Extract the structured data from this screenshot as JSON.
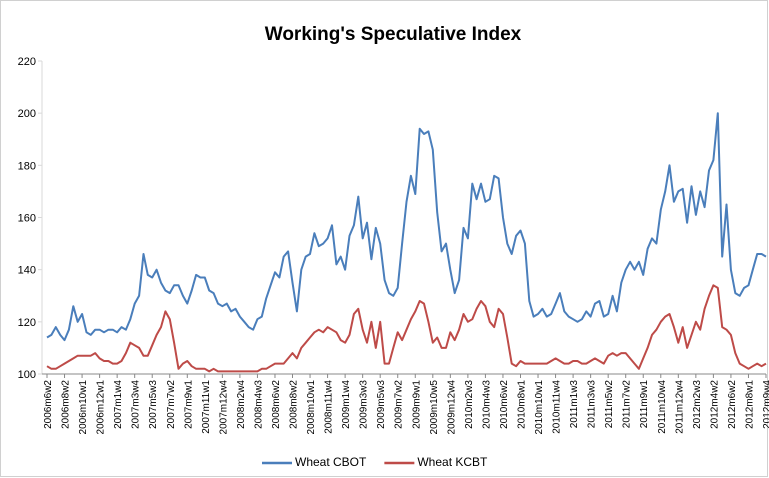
{
  "chart_data": {
    "type": "line",
    "title": "Working's Speculative Index",
    "categories": [
      "2006m6w2",
      null,
      null,
      null,
      "2006m8w2",
      null,
      null,
      null,
      "2006m10w1",
      null,
      null,
      null,
      "2006m12w1",
      null,
      null,
      null,
      "2007m1w4",
      null,
      null,
      null,
      "2007m3w4",
      null,
      null,
      null,
      "2007m5w3",
      null,
      null,
      null,
      "2007m7w2",
      null,
      null,
      null,
      "2007m9w1",
      null,
      null,
      null,
      "2007m11w1",
      null,
      null,
      null,
      "2007m12w4",
      null,
      null,
      null,
      "2008m2w4",
      null,
      null,
      null,
      "2008m4w3",
      null,
      null,
      null,
      "2008m6w2",
      null,
      null,
      null,
      "2008m8w2",
      null,
      null,
      null,
      "2008m10w1",
      null,
      null,
      null,
      "2008m11w4",
      null,
      null,
      null,
      "2009m1w4",
      null,
      null,
      null,
      "2009m3w3",
      null,
      null,
      null,
      "2009m5w3",
      null,
      null,
      null,
      "2009m7w2",
      null,
      null,
      null,
      "2009m9w1",
      null,
      null,
      null,
      "2009m10w5",
      null,
      null,
      null,
      "2009m12w4",
      null,
      null,
      null,
      "2010m2w3",
      null,
      null,
      null,
      "2010m4w3",
      null,
      null,
      null,
      "2010m6w2",
      null,
      null,
      null,
      "2010m8w1",
      null,
      null,
      null,
      "2010m10w1",
      null,
      null,
      null,
      "2010m11w4",
      null,
      null,
      null,
      "2011m1w3",
      null,
      null,
      null,
      "2011m3w3",
      null,
      null,
      null,
      "2011m5w2",
      null,
      null,
      null,
      "2011m7w2",
      null,
      null,
      null,
      "2011m9w1",
      null,
      null,
      null,
      "2011m10w4",
      null,
      null,
      null,
      "2011m12w4",
      null,
      null,
      null,
      "2012m2w3",
      null,
      null,
      null,
      "2012m4w2",
      null,
      null,
      null,
      "2012m6w2",
      null,
      null,
      null,
      "2012m8w1",
      null,
      null,
      null,
      "2012m9w4"
    ],
    "series": [
      {
        "name": "Wheat CBOT",
        "color": "#4a7ebb",
        "values": [
          114,
          115,
          118,
          115,
          113,
          117,
          126,
          120,
          123,
          116,
          115,
          117,
          117,
          116,
          117,
          117,
          116,
          118,
          117,
          121,
          127,
          130,
          146,
          138,
          137,
          140,
          135,
          132,
          131,
          134,
          134,
          130,
          127,
          132,
          138,
          137,
          137,
          132,
          131,
          127,
          126,
          127,
          124,
          125,
          122,
          120,
          118,
          117,
          121,
          122,
          129,
          134,
          139,
          137,
          145,
          147,
          135,
          124,
          140,
          145,
          146,
          154,
          149,
          150,
          152,
          157,
          142,
          145,
          140,
          153,
          157,
          168,
          152,
          158,
          144,
          156,
          150,
          136,
          131,
          130,
          133,
          150,
          166,
          176,
          169,
          194,
          192,
          193,
          186,
          162,
          147,
          150,
          140,
          131,
          136,
          156,
          152,
          173,
          167,
          173,
          166,
          167,
          176,
          175,
          160,
          150,
          146,
          153,
          155,
          150,
          128,
          122,
          123,
          125,
          122,
          123,
          127,
          131,
          124,
          122,
          121,
          120,
          121,
          124,
          122,
          127,
          128,
          122,
          123,
          130,
          124,
          135,
          140,
          143,
          140,
          143,
          138,
          148,
          152,
          150,
          163,
          170,
          180,
          166,
          170,
          171,
          158,
          172,
          161,
          170,
          164,
          178,
          182,
          200,
          145,
          165,
          140,
          131,
          130,
          133,
          134,
          140,
          146,
          146,
          145
        ]
      },
      {
        "name": "Wheat KCBT",
        "color": "#be4b48",
        "values": [
          103,
          102,
          102,
          103,
          104,
          105,
          106,
          107,
          107,
          107,
          107,
          108,
          106,
          105,
          105,
          104,
          104,
          105,
          108,
          112,
          111,
          110,
          107,
          107,
          111,
          115,
          118,
          124,
          121,
          112,
          102,
          104,
          105,
          103,
          102,
          102,
          102,
          101,
          102,
          101,
          101,
          101,
          101,
          101,
          101,
          101,
          101,
          101,
          101,
          102,
          102,
          103,
          104,
          104,
          104,
          106,
          108,
          106,
          110,
          112,
          114,
          116,
          117,
          116,
          118,
          117,
          116,
          113,
          112,
          115,
          123,
          125,
          117,
          112,
          120,
          110,
          120,
          104,
          104,
          110,
          116,
          113,
          117,
          121,
          124,
          128,
          127,
          120,
          112,
          114,
          110,
          110,
          116,
          113,
          117,
          123,
          120,
          121,
          125,
          128,
          126,
          120,
          118,
          125,
          123,
          114,
          104,
          103,
          105,
          104,
          104,
          104,
          104,
          104,
          104,
          105,
          106,
          105,
          104,
          104,
          105,
          105,
          104,
          104,
          105,
          106,
          105,
          104,
          107,
          108,
          107,
          108,
          108,
          106,
          104,
          102,
          106,
          110,
          115,
          117,
          120,
          122,
          123,
          118,
          112,
          118,
          110,
          115,
          120,
          117,
          125,
          130,
          134,
          133,
          118,
          117,
          115,
          108,
          104,
          103,
          102,
          103,
          104,
          103,
          104
        ]
      }
    ],
    "ylim": [
      100,
      220
    ],
    "yticks": [
      100,
      120,
      140,
      160,
      180,
      200,
      220
    ],
    "grid": false,
    "legend": "bottom"
  }
}
